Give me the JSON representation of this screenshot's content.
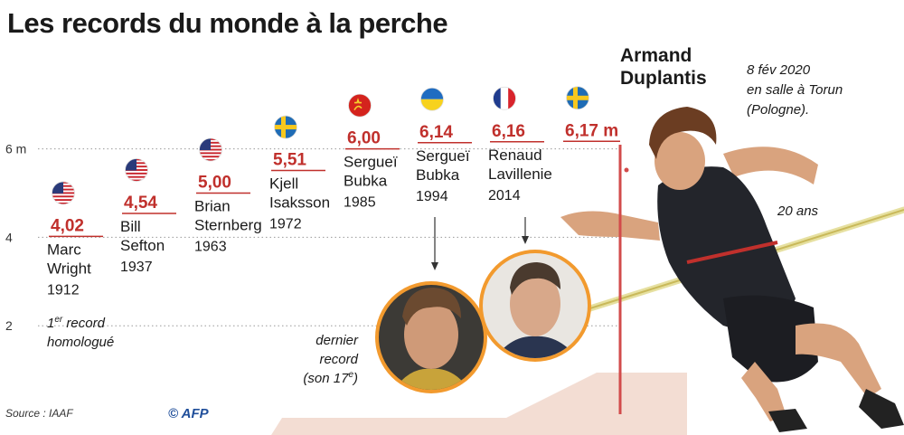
{
  "title": "Les records du monde à la perche",
  "chart_data": {
    "type": "bar",
    "title": "Les records du monde à la perche",
    "ylim": [
      0,
      7
    ],
    "y_ticks": [
      "6 m",
      "4",
      "2"
    ],
    "y_tick_values": [
      6,
      4,
      2
    ],
    "records": [
      {
        "value": "4,02",
        "v": 4.02,
        "name1": "Marc",
        "name2": "Wright",
        "year": "1912",
        "country": "us"
      },
      {
        "value": "4,54",
        "v": 4.54,
        "name1": "Bill",
        "name2": "Sefton",
        "year": "1937",
        "country": "us"
      },
      {
        "value": "5,00",
        "v": 5.0,
        "name1": "Brian",
        "name2": "Sternberg",
        "year": "1963",
        "country": "us"
      },
      {
        "value": "5,51",
        "v": 5.51,
        "name1": "Kjell",
        "name2": "Isaksson",
        "year": "1972",
        "country": "se"
      },
      {
        "value": "6,00",
        "v": 6.0,
        "name1": "Sergueï",
        "name2": "Bubka",
        "year": "1985",
        "country": "su"
      },
      {
        "value": "6,14",
        "v": 6.14,
        "name1": "Sergueï",
        "name2": "Bubka",
        "year": "1994",
        "country": "ua"
      },
      {
        "value": "6,16",
        "v": 6.16,
        "name1": "Renaud",
        "name2": "Lavillenie",
        "year": "2014",
        "country": "fr"
      },
      {
        "value": "6,17 m",
        "v": 6.17,
        "name1": "",
        "name2": "",
        "year": "",
        "country": "se"
      }
    ]
  },
  "annotations": {
    "first_record_l1": "1",
    "first_record_sup": "er",
    "first_record_l1b": " record",
    "first_record_l2": "homologué",
    "last_record_l1": "dernier",
    "last_record_l2": "record",
    "last_record_l3a": "(son 17",
    "last_record_sup": "e",
    "last_record_l3b": ")",
    "athlete_first": "Armand",
    "athlete_last": "Duplantis",
    "date_l1": "8 fév 2020",
    "date_l2": "en salle à Torun",
    "date_l3": "(Pologne).",
    "age": "20 ans"
  },
  "footer": {
    "source": "Source : IAAF",
    "credit": "© AFP"
  },
  "colors": {
    "accent": "#c0302c",
    "ring": "#f29a2e",
    "ground": "#f3ddd3",
    "dotted": "#9a9a9a"
  },
  "icons": [
    "flag-usa-icon",
    "flag-sweden-icon",
    "flag-ussr-icon",
    "flag-ukraine-icon",
    "flag-france-icon",
    "athlete-photo",
    "bubka-portrait",
    "lavillenie-portrait",
    "afp-logo"
  ]
}
